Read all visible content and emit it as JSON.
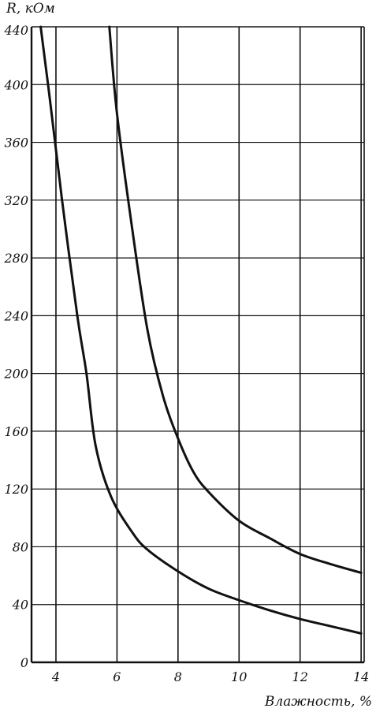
{
  "chart_data": {
    "type": "line",
    "xlabel": "Влажность, %",
    "ylabel": "R, кОм",
    "xlim": [
      3.2,
      14.1
    ],
    "ylim": [
      0,
      440
    ],
    "x_ticks": [
      4,
      6,
      8,
      10,
      12,
      14
    ],
    "x_tick_labels": [
      "4",
      "6",
      "8",
      "10",
      "12",
      "14"
    ],
    "y_ticks": [
      0,
      40,
      80,
      120,
      160,
      200,
      240,
      280,
      320,
      360,
      400,
      440
    ],
    "y_tick_labels": [
      "0",
      "40",
      "80",
      "120",
      "160",
      "200",
      "240",
      "280",
      "320",
      "360",
      "400",
      "440"
    ],
    "grid": true,
    "line_color": "#111111",
    "series": [
      {
        "x": [
          3.5,
          3.8,
          4.2,
          4.7,
          5.0,
          5.3,
          5.8,
          6.5,
          7.0,
          8.0,
          9.0,
          10.0,
          11.0,
          12.0,
          13.0,
          14.0
        ],
        "values": [
          440,
          390,
          320,
          240,
          200,
          150,
          115,
          90,
          78,
          63,
          51,
          43,
          36,
          30,
          25,
          20
        ]
      },
      {
        "x": [
          5.75,
          6.0,
          6.5,
          7.0,
          7.5,
          8.0,
          8.5,
          9.0,
          10.0,
          11.0,
          12.0,
          13.0,
          14.0
        ],
        "values": [
          440,
          380,
          300,
          230,
          185,
          155,
          132,
          118,
          98,
          86,
          75,
          68,
          62
        ]
      }
    ]
  }
}
